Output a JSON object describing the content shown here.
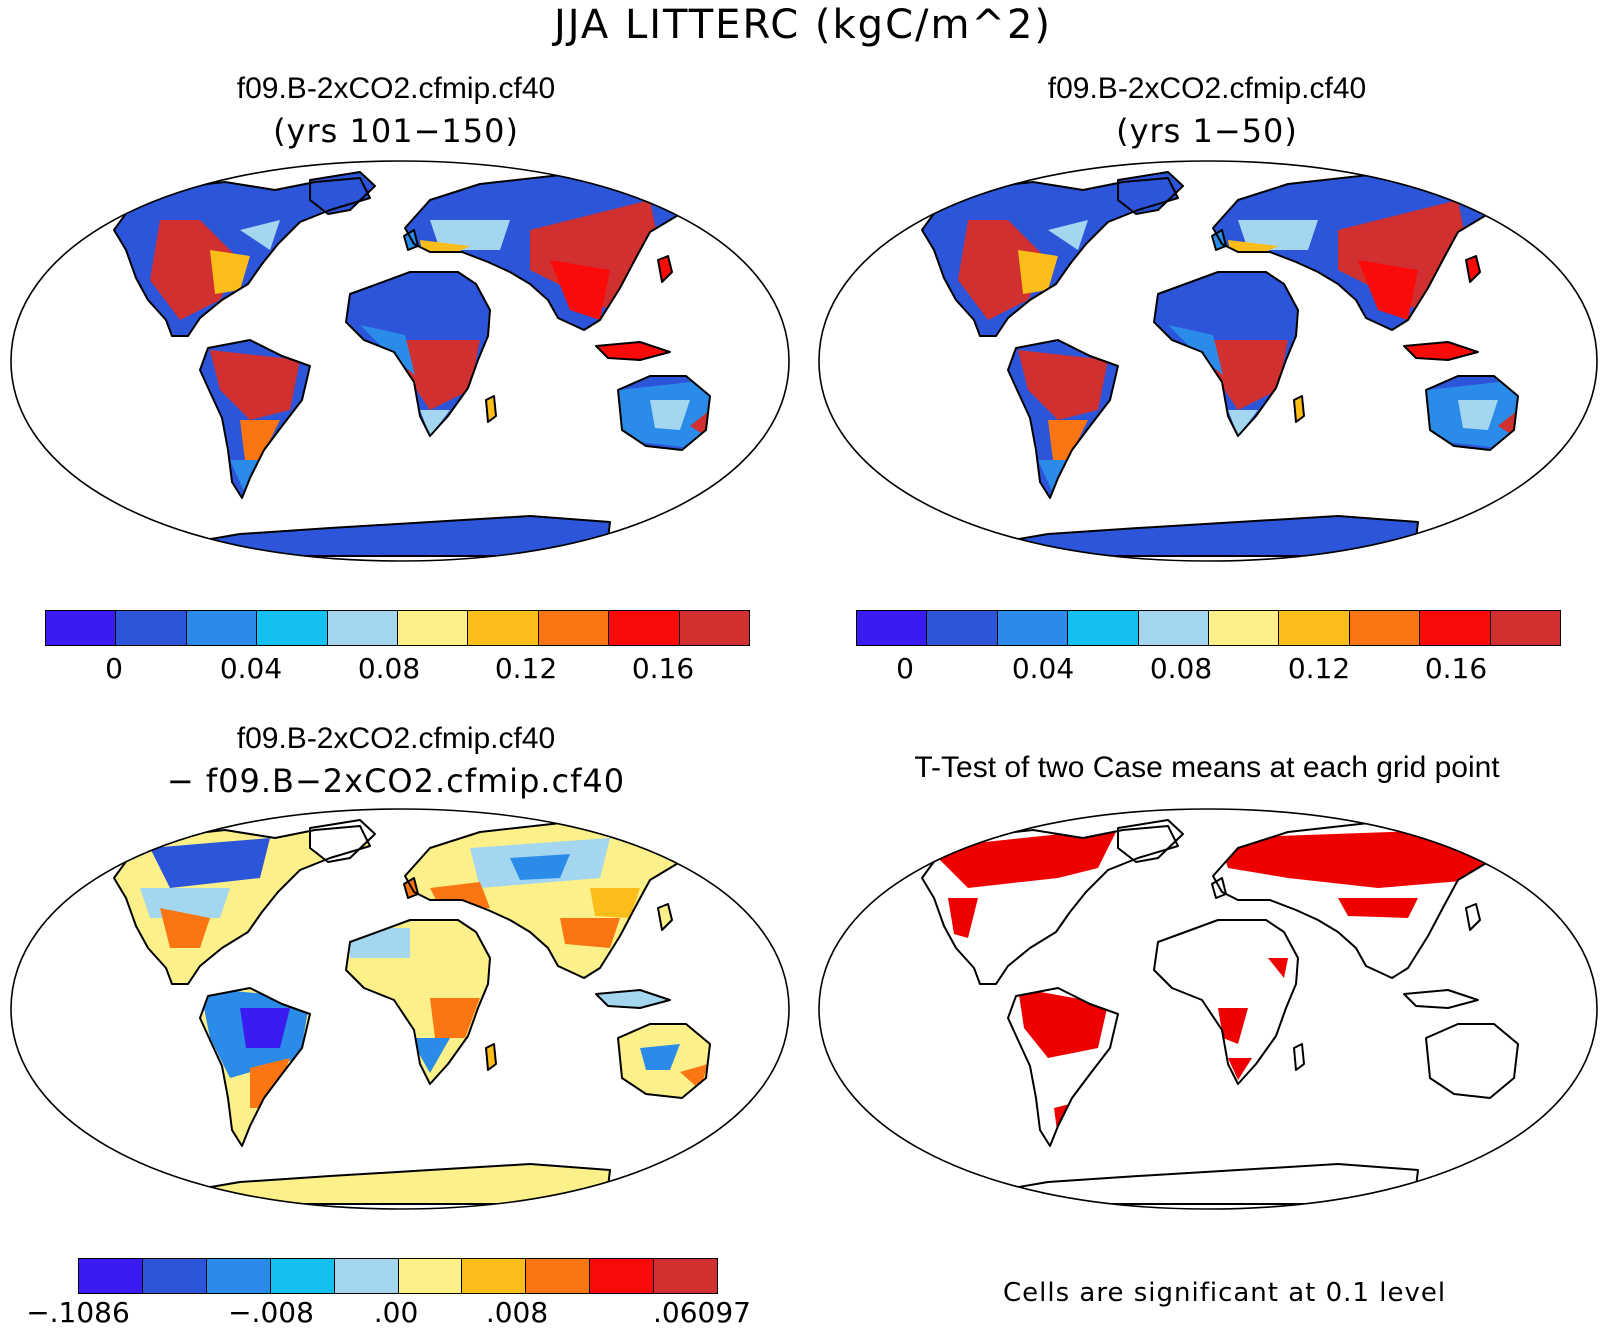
{
  "figure": {
    "title": "JJA LITTERC (kgC/m^2)"
  },
  "panels": {
    "top_left": {
      "title": "f09.B-2xCO2.cfmip.cf40",
      "subtitle": "(yrs 101−150)"
    },
    "top_right": {
      "title": "f09.B-2xCO2.cfmip.cf40",
      "subtitle": "(yrs 1−50)"
    },
    "bottom_left": {
      "title": "f09.B-2xCO2.cfmip.cf40",
      "subtitle": "− f09.B−2xCO2.cfmip.cf40"
    },
    "bottom_right": {
      "title": "T-Test of two Case means at each grid point",
      "note": "Cells are significant at 0.1 level"
    }
  },
  "colorbars": {
    "mean_fields": {
      "colors": [
        "#3a1cf0",
        "#2d55d9",
        "#2a8ce8",
        "#15c0f0",
        "#a4d6f0",
        "#fbf08a",
        "#fbbd1a",
        "#fb7612",
        "#fb0a0a",
        "#d03030"
      ],
      "tick_labels": [
        "0",
        "0.04",
        "0.08",
        "0.12",
        "0.16"
      ]
    },
    "difference": {
      "colors": [
        "#3a1cf0",
        "#2d55d9",
        "#2a8ce8",
        "#15c0f0",
        "#a4d6f0",
        "#fbf08a",
        "#fbbd1a",
        "#fb7612",
        "#fb0a0a",
        "#d03030"
      ],
      "tick_labels": [
        "−.1086",
        "−.008",
        ".00",
        ".008",
        ".06097"
      ]
    }
  },
  "colors": {
    "low": "#2d55d9",
    "high": "#d03030",
    "significant": "#ee0000",
    "diff_background": "#fbf08a"
  }
}
